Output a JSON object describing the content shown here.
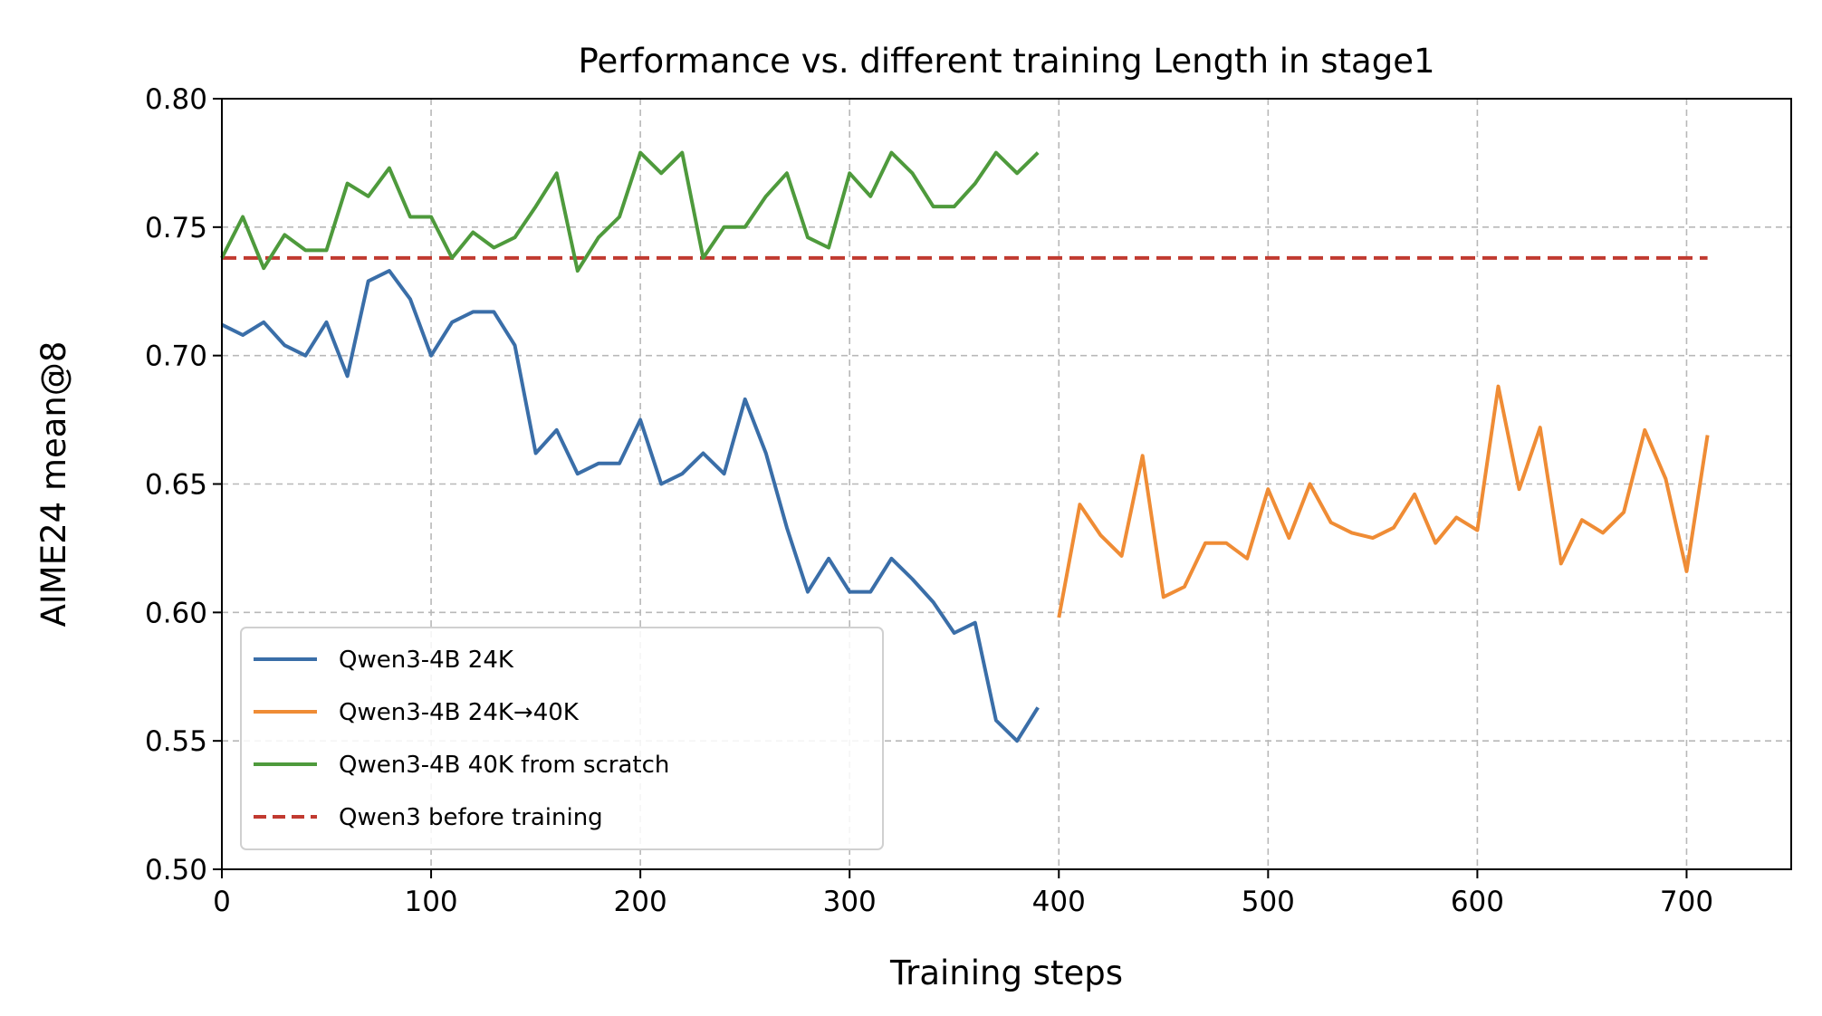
{
  "chart_data": {
    "type": "line",
    "title": "Performance vs. different training Length in stage1",
    "xlabel": "Training steps",
    "ylabel": "AIME24 mean@8",
    "xlim": [
      0,
      750
    ],
    "ylim": [
      0.5,
      0.8
    ],
    "xticks": [
      0,
      100,
      200,
      300,
      400,
      500,
      600,
      700
    ],
    "yticks": [
      0.5,
      0.55,
      0.6,
      0.65,
      0.7,
      0.75,
      0.8
    ],
    "xtick_labels": [
      "0",
      "100",
      "200",
      "300",
      "400",
      "500",
      "600",
      "700"
    ],
    "ytick_labels": [
      "0.50",
      "0.55",
      "0.60",
      "0.65",
      "0.70",
      "0.75",
      "0.80"
    ],
    "grid": true,
    "legend_position": "lower-left",
    "series": [
      {
        "name": "Qwen3-4B 24K",
        "color": "#3a6ea8",
        "style": "solid",
        "x": [
          0,
          10,
          20,
          30,
          40,
          50,
          60,
          70,
          80,
          90,
          100,
          110,
          120,
          130,
          140,
          150,
          160,
          170,
          180,
          190,
          200,
          210,
          220,
          230,
          240,
          250,
          260,
          270,
          280,
          290,
          300,
          310,
          320,
          330,
          340,
          350,
          360,
          370,
          380,
          390
        ],
        "y": [
          0.712,
          0.708,
          0.713,
          0.704,
          0.7,
          0.713,
          0.692,
          0.729,
          0.733,
          0.722,
          0.7,
          0.713,
          0.717,
          0.717,
          0.704,
          0.662,
          0.671,
          0.654,
          0.658,
          0.658,
          0.675,
          0.65,
          0.654,
          0.662,
          0.654,
          0.683,
          0.662,
          0.633,
          0.608,
          0.621,
          0.608,
          0.608,
          0.621,
          0.613,
          0.604,
          0.592,
          0.596,
          0.558,
          0.55,
          0.563
        ]
      },
      {
        "name": "Qwen3-4B 24K→40K",
        "color": "#ef8c35",
        "style": "solid",
        "x": [
          400,
          410,
          420,
          430,
          440,
          450,
          460,
          470,
          480,
          490,
          500,
          510,
          520,
          530,
          540,
          550,
          560,
          570,
          580,
          590,
          600,
          610,
          620,
          630,
          640,
          650,
          660,
          670,
          680,
          690,
          700,
          710
        ],
        "y": [
          0.598,
          0.642,
          0.63,
          0.622,
          0.661,
          0.606,
          0.61,
          0.627,
          0.627,
          0.621,
          0.648,
          0.629,
          0.65,
          0.635,
          0.631,
          0.629,
          0.633,
          0.646,
          0.627,
          0.637,
          0.632,
          0.688,
          0.648,
          0.672,
          0.619,
          0.636,
          0.631,
          0.639,
          0.671,
          0.652,
          0.616,
          0.669
        ]
      },
      {
        "name": "Qwen3-4B 40K from scratch",
        "color": "#4e9a3c",
        "style": "solid",
        "x": [
          0,
          10,
          20,
          30,
          40,
          50,
          60,
          70,
          80,
          90,
          100,
          110,
          120,
          130,
          140,
          150,
          160,
          170,
          180,
          190,
          200,
          210,
          220,
          230,
          240,
          250,
          260,
          270,
          280,
          290,
          300,
          310,
          320,
          330,
          340,
          350,
          360,
          370,
          380,
          390
        ],
        "y": [
          0.738,
          0.754,
          0.734,
          0.747,
          0.741,
          0.741,
          0.767,
          0.762,
          0.773,
          0.754,
          0.754,
          0.738,
          0.748,
          0.742,
          0.746,
          0.758,
          0.771,
          0.733,
          0.746,
          0.754,
          0.779,
          0.771,
          0.779,
          0.738,
          0.75,
          0.75,
          0.762,
          0.771,
          0.746,
          0.742,
          0.771,
          0.762,
          0.779,
          0.771,
          0.758,
          0.758,
          0.767,
          0.779,
          0.771,
          0.779
        ]
      },
      {
        "name": "Qwen3 before training",
        "color": "#c13a30",
        "style": "dashed",
        "x": [
          0,
          710
        ],
        "y": [
          0.738,
          0.738
        ]
      }
    ]
  }
}
